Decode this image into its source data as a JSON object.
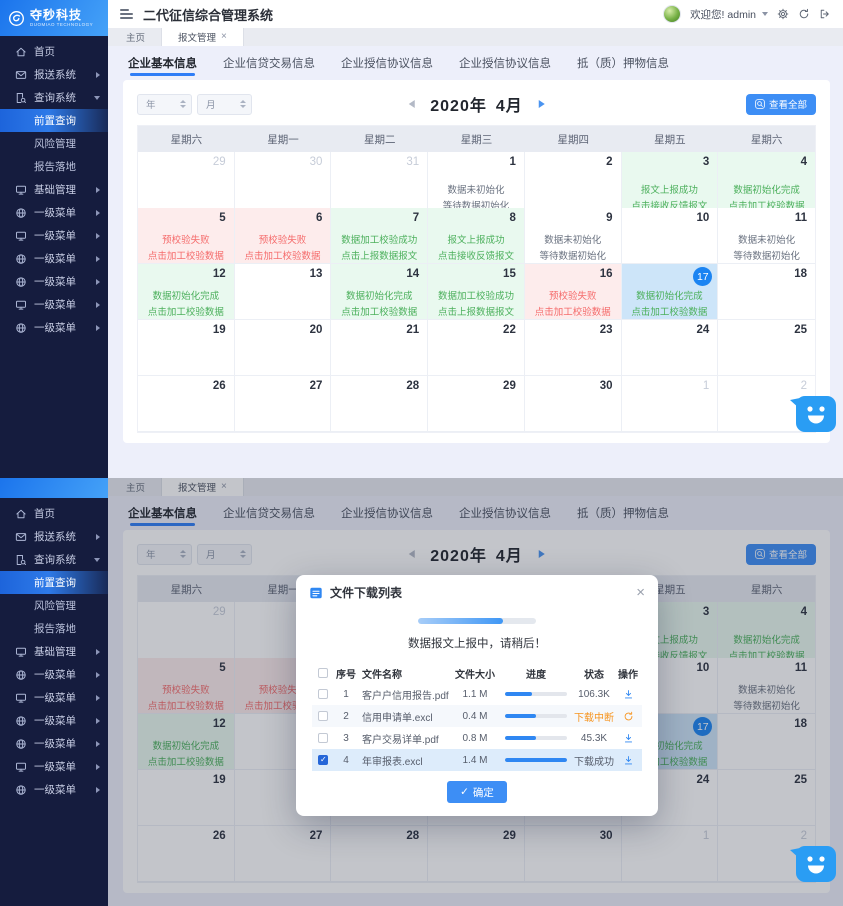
{
  "brand": {
    "name": "夺秒科技",
    "tagline": "DUOMIAO TECHNOLOGY"
  },
  "header": {
    "title": "二代征信综合管理系统",
    "welcome": "欢迎您! admin",
    "icons": [
      "settings",
      "refresh",
      "logout"
    ]
  },
  "window_tabs": [
    {
      "label": "主页",
      "active": false,
      "closable": false
    },
    {
      "label": "报文管理",
      "active": true,
      "closable": true
    }
  ],
  "sidebar": {
    "items": [
      {
        "label": "首页",
        "icon": "home",
        "arrow": "none"
      },
      {
        "label": "报送系统",
        "icon": "send",
        "arrow": "right"
      },
      {
        "label": "查询系统",
        "icon": "query",
        "arrow": "down"
      },
      {
        "label": "前置查询",
        "child": true,
        "active": true
      },
      {
        "label": "风险管理",
        "child": true
      },
      {
        "label": "报告落地",
        "child": true
      },
      {
        "label": "基础管理",
        "icon": "monitor",
        "arrow": "right"
      },
      {
        "label": "一级菜单",
        "icon": "globe",
        "arrow": "right"
      },
      {
        "label": "一级菜单",
        "icon": "monitor",
        "arrow": "right"
      },
      {
        "label": "一级菜单",
        "icon": "globe",
        "arrow": "right"
      },
      {
        "label": "一级菜单",
        "icon": "globe",
        "arrow": "right"
      },
      {
        "label": "一级菜单",
        "icon": "monitor",
        "arrow": "right"
      },
      {
        "label": "一级菜单",
        "icon": "globe",
        "arrow": "right"
      }
    ]
  },
  "content_tabs": [
    {
      "label": "企业基本信息",
      "active": true
    },
    {
      "label": "企业信贷交易信息",
      "active": false
    },
    {
      "label": "企业授信协议信息",
      "active": false
    },
    {
      "label": "企业授信协议信息",
      "active": false
    },
    {
      "label": "抵（质）押物信息",
      "active": false
    }
  ],
  "calendar": {
    "year_placeholder": "年",
    "month_placeholder": "月",
    "title_year": "2020年",
    "title_month": "4月",
    "view_all_label": "查看全部",
    "weekdays": [
      "星期六",
      "星期一",
      "星期二",
      "星期三",
      "星期四",
      "星期五",
      "星期六"
    ],
    "cells": [
      {
        "day": "29",
        "muted": true
      },
      {
        "day": "30",
        "muted": true
      },
      {
        "day": "31",
        "muted": true
      },
      {
        "day": "1",
        "type": "gray",
        "line1": "数据未初始化",
        "line2": "等待数据初始化"
      },
      {
        "day": "2"
      },
      {
        "day": "3",
        "type": "green",
        "line1": "报文上报成功",
        "line2": "点击接收反馈报文"
      },
      {
        "day": "4",
        "type": "green",
        "line1": "数据初始化完成",
        "line2": "点击加工校验数据"
      },
      {
        "day": "5",
        "type": "red",
        "line1": "预校验失败",
        "line2": "点击加工校验数据"
      },
      {
        "day": "6",
        "type": "red",
        "line1": "预校验失败",
        "line2": "点击加工校验数据"
      },
      {
        "day": "7",
        "type": "green",
        "line1": "数据加工校验成功",
        "line2": "点击上报数据报文"
      },
      {
        "day": "8",
        "type": "green",
        "line1": "报文上报成功",
        "line2": "点击接收反馈报文"
      },
      {
        "day": "9",
        "type": "gray",
        "line1": "数据未初始化",
        "line2": "等待数据初始化"
      },
      {
        "day": "10"
      },
      {
        "day": "11",
        "type": "gray",
        "line1": "数据未初始化",
        "line2": "等待数据初始化"
      },
      {
        "day": "12",
        "type": "green",
        "line1": "数据初始化完成",
        "line2": "点击加工校验数据"
      },
      {
        "day": "13"
      },
      {
        "day": "14",
        "type": "green",
        "line1": "数据初始化完成",
        "line2": "点击加工校验数据"
      },
      {
        "day": "15",
        "type": "green",
        "line1": "数据加工校验成功",
        "line2": "点击上报数据报文"
      },
      {
        "day": "16",
        "type": "red",
        "line1": "预校验失败",
        "line2": "点击加工校验数据"
      },
      {
        "day": "17",
        "type": "selected",
        "line1": "数据初始化完成",
        "line2": "点击加工校验数据"
      },
      {
        "day": "18"
      },
      {
        "day": "19"
      },
      {
        "day": "20"
      },
      {
        "day": "21"
      },
      {
        "day": "22"
      },
      {
        "day": "23"
      },
      {
        "day": "24"
      },
      {
        "day": "25"
      },
      {
        "day": "26"
      },
      {
        "day": "27"
      },
      {
        "day": "28"
      },
      {
        "day": "29"
      },
      {
        "day": "30"
      },
      {
        "day": "1",
        "muted": true
      },
      {
        "day": "2",
        "muted": true
      }
    ]
  },
  "modal": {
    "title": "文件下载列表",
    "close_glyph": "×",
    "progress_pct": 72,
    "message": "数据报文上报中，请稍后！",
    "table_headers": [
      "序号",
      "文件名称",
      "文件大小",
      "进度",
      "状态",
      "操作"
    ],
    "rows": [
      {
        "no": "1",
        "name": "客户户信用报告.pdf",
        "size": "1.1 M",
        "progress": 44,
        "status": "106.3K",
        "status_style": "normal",
        "action": "download",
        "checked": false,
        "stripe": false,
        "selected": false
      },
      {
        "no": "2",
        "name": "信用申请单.excl",
        "size": "0.4 M",
        "progress": 50,
        "status": "下载中断",
        "status_style": "orange",
        "action": "refresh",
        "checked": false,
        "stripe": true,
        "selected": false
      },
      {
        "no": "3",
        "name": "客户交易详单.pdf",
        "size": "0.8 M",
        "progress": 50,
        "status": "45.3K",
        "status_style": "normal",
        "action": "download",
        "checked": false,
        "stripe": false,
        "selected": false
      },
      {
        "no": "4",
        "name": "年审报表.excl",
        "size": "1.4 M",
        "progress": 100,
        "status": "下载成功",
        "status_style": "normal",
        "action": "download",
        "checked": true,
        "stripe": false,
        "selected": true
      }
    ],
    "confirm_label": "确定"
  },
  "colors": {
    "accent_blue": "#2f87f2",
    "green": "#4cb05c",
    "green_bg": "#e9f9ef",
    "red": "#f56c6c",
    "red_bg": "#fdecec",
    "selected_bg": "#cde5f9",
    "orange": "#f7941e",
    "sidebar_bg": "#151c3e"
  }
}
